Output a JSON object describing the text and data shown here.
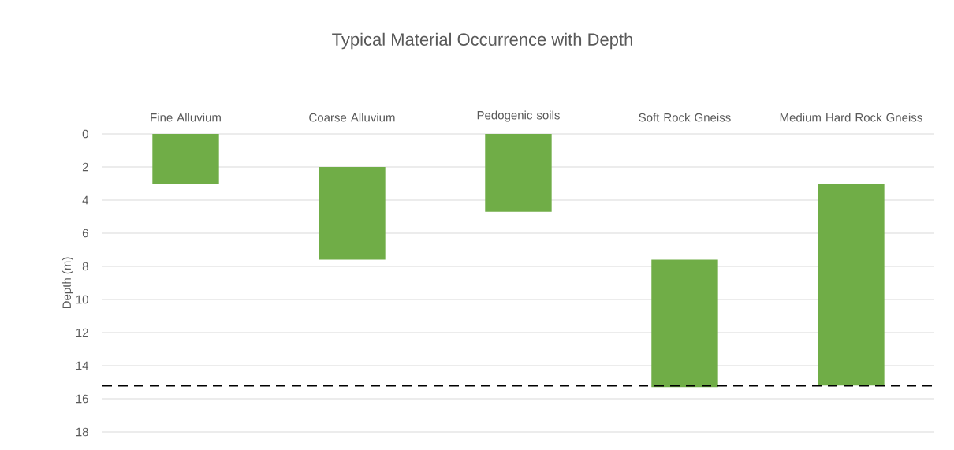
{
  "chart_data": {
    "type": "bar",
    "title": "Typical Material Occurrence with Depth",
    "ylabel": "Depth (m)",
    "categories": [
      "Fine Alluvium",
      "Coarse Alluvium",
      "Pedogenic soils",
      "Soft Rock Gneiss",
      "Medium Hard Rock Gneiss"
    ],
    "base": [
      0,
      2,
      0,
      7.6,
      3
    ],
    "values": [
      3,
      5.6,
      4.7,
      7.7,
      12.2
    ],
    "color": "#70ad47",
    "ylim": [
      18,
      0
    ],
    "yticks": [
      0,
      2,
      4,
      6,
      8,
      10,
      12,
      14,
      16,
      18
    ],
    "grid": "y",
    "ref_lines": [
      {
        "axis": "y",
        "value": 15.2,
        "color": "#000000",
        "line_style": "dashed"
      }
    ]
  }
}
